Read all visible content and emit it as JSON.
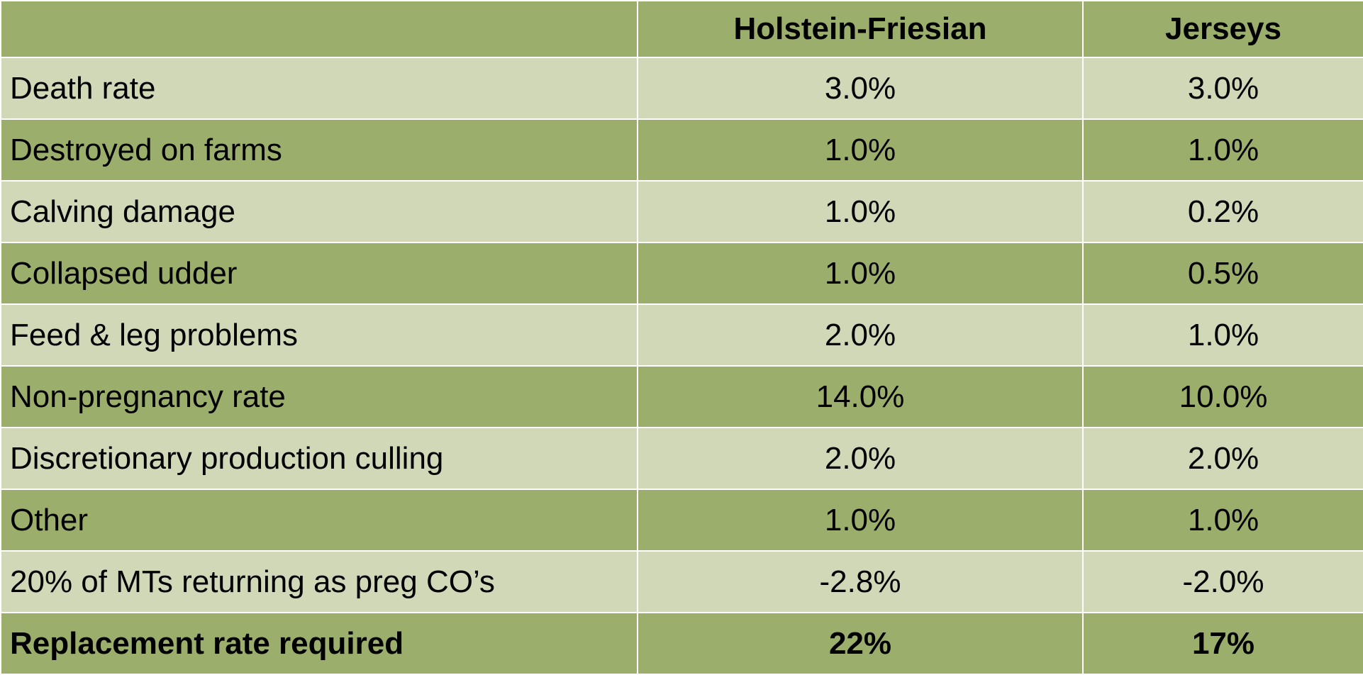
{
  "table": {
    "header": [
      "Holstein-Friesian",
      "Jerseys"
    ],
    "rows": [
      [
        "Death rate",
        "3.0%",
        "3.0%"
      ],
      [
        "Destroyed on farms",
        "1.0%",
        "1.0%"
      ],
      [
        "Calving damage",
        "1.0%",
        "0.2%"
      ],
      [
        "Collapsed udder",
        "1.0%",
        "0.5%"
      ],
      [
        "Feed & leg problems",
        "2.0%",
        "1.0%"
      ],
      [
        "Non-pregnancy rate",
        "14.0%",
        "10.0%"
      ],
      [
        "Discretionary production culling",
        "2.0%",
        "2.0%"
      ],
      [
        "Other",
        "1.0%",
        "1.0%"
      ],
      [
        "20% of MTs returning as preg CO’s",
        "-2.8%",
        "-2.0%"
      ],
      [
        "Replacement rate required",
        "22%",
        "17%"
      ]
    ]
  }
}
